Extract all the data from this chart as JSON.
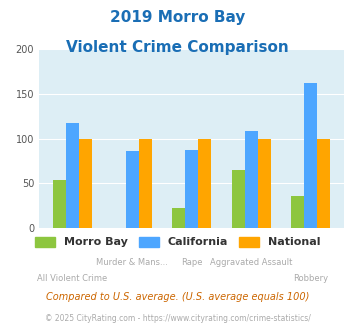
{
  "title_line1": "2019 Morro Bay",
  "title_line2": "Violent Crime Comparison",
  "categories": [
    "All Violent Crime",
    "Murder & Mans...",
    "Rape",
    "Aggravated Assault",
    "Robbery"
  ],
  "morro_bay": [
    54,
    0,
    22,
    65,
    36
  ],
  "california": [
    117,
    86,
    87,
    108,
    162
  ],
  "national": [
    100,
    100,
    100,
    100,
    100
  ],
  "colors": {
    "morro_bay": "#8dc63f",
    "california": "#4da6ff",
    "national": "#ffa500"
  },
  "ylim": [
    0,
    200
  ],
  "yticks": [
    0,
    50,
    100,
    150,
    200
  ],
  "bg_color": "#ddeef5",
  "title_color": "#1a6eb5",
  "xlabel_color": "#aaaaaa",
  "footnote1": "Compared to U.S. average. (U.S. average equals 100)",
  "footnote2": "© 2025 CityRating.com - https://www.cityrating.com/crime-statistics/",
  "footnote1_color": "#cc6600",
  "footnote2_color": "#aaaaaa",
  "legend_labels": [
    "Morro Bay",
    "California",
    "National"
  ]
}
